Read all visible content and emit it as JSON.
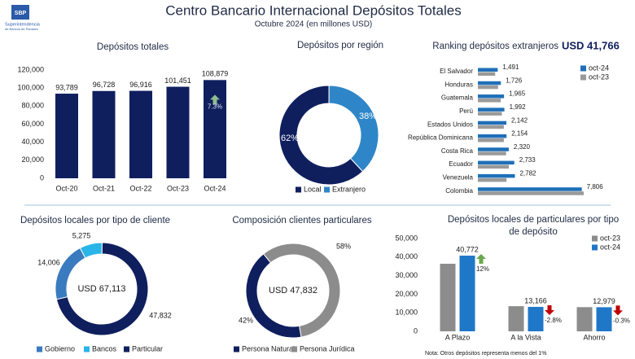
{
  "header": {
    "title": "Centro Bancario Internacional Depósitos Totales",
    "subtitle": "Octubre 2024 (en millones USD)",
    "logo": [
      "SBP",
      "Superintendencia",
      "de Bancos de Panamá"
    ]
  },
  "chart_data": [
    {
      "type": "bar",
      "title": "Depósitos totales",
      "categories": [
        "Oct-20",
        "Oct-21",
        "Oct-22",
        "Oct-23",
        "Oct-24"
      ],
      "values": [
        93789,
        96728,
        96916,
        101451,
        108879
      ],
      "value_labels": [
        "93,789",
        "96,728",
        "96,916",
        "101,451",
        "108,879"
      ],
      "color": "#0f1f5e",
      "ylim": [
        0,
        120000
      ],
      "yticks": [
        0,
        {
          "value": 20000,
          "label": "20,000"
        },
        {
          "value": 40000,
          "label": "40,000"
        },
        {
          "value": 60000,
          "label": "60,000"
        },
        {
          "value": 80000,
          "label": "80,000"
        },
        {
          "value": 100000,
          "label": "100,000"
        },
        {
          "value": 120000,
          "label": "120,000"
        }
      ],
      "change": 7.3,
      "change_label": "7.3%"
    },
    {
      "type": "pie",
      "title": "Depósitos por región",
      "categories": [
        "Local",
        "Extranjero"
      ],
      "values": [
        62,
        38
      ],
      "value_labels": [
        "62%",
        "38%"
      ],
      "colors": [
        "#0f1f5e",
        "#2e86c8"
      ]
    },
    {
      "type": "bar",
      "orientation": "horizontal",
      "title": "Ranking depósitos extranjeros",
      "total_label": "USD 41,766",
      "categories": [
        "El Salvador",
        "Honduras",
        "Guatemala",
        "Perú",
        "Estados Unidos",
        "República Dominicana",
        "Costa Rica",
        "Ecuador",
        "Venezuela",
        "Colombia"
      ],
      "series": [
        {
          "name": "oct-24",
          "color": "#1f6fb8",
          "values": [
            1491,
            1726,
            1965,
            1992,
            2142,
            2154,
            2320,
            2733,
            2782,
            7806
          ],
          "value_labels": [
            "1,491",
            "1,726",
            "1,965",
            "1,992",
            "2,142",
            "2,154",
            "2,320",
            "2,733",
            "2,782",
            "7,806"
          ]
        },
        {
          "name": "oct-23",
          "color": "#9a9a9a",
          "values": [
            1300,
            1520,
            1720,
            1800,
            1950,
            1950,
            2120,
            2330,
            2150,
            7950
          ]
        }
      ]
    },
    {
      "type": "pie",
      "title": "Depósitos locales por tipo de cliente",
      "categories": [
        "Gobierno",
        "Bancos",
        "Particular"
      ],
      "values": [
        14006,
        5275,
        47832
      ],
      "value_labels": [
        "14,006",
        "5,275",
        "47,832"
      ],
      "colors": [
        "#3a7bbf",
        "#29b5e8",
        "#0f1f5e"
      ],
      "center_label": "USD 67,113"
    },
    {
      "type": "pie",
      "title": "Composición clientes particulares",
      "categories": [
        "Persona Natural",
        "Persona Jurídica"
      ],
      "values": [
        42,
        58
      ],
      "value_labels": [
        "42%",
        "58%"
      ],
      "colors": [
        "#0f1f5e",
        "#8c8c8c"
      ],
      "center_label": "USD 47,832"
    },
    {
      "type": "bar",
      "title": "Depósitos locales de particulares por tipo de depósito",
      "categories": [
        "A Plazo",
        "A la Vista",
        "Ahorro"
      ],
      "series": [
        {
          "name": "oct-23",
          "color": "#8c8c8c",
          "values": [
            36400,
            13550,
            13020
          ]
        },
        {
          "name": "oct-24",
          "color": "#1f77c8",
          "values": [
            40772,
            13166,
            12979
          ],
          "value_labels": [
            "40,772",
            "13,166",
            "12,979"
          ]
        }
      ],
      "ylim": [
        0,
        50000
      ],
      "yticks": [
        0,
        {
          "value": 10000,
          "label": "10,000"
        },
        {
          "value": 20000,
          "label": "20,000"
        },
        {
          "value": 30000,
          "label": "30,000"
        },
        {
          "value": 40000,
          "label": "40,000"
        },
        {
          "value": 50000,
          "label": "50,000"
        }
      ],
      "changes": [
        12,
        -2.8,
        -0.3
      ],
      "change_labels": [
        "12%",
        "-2.8%",
        "-0.3%"
      ],
      "note": "Nota: Otros depósitos representa menos del 1%"
    }
  ]
}
